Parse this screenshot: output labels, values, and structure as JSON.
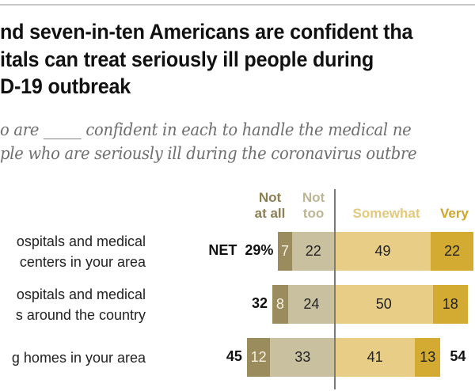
{
  "title_lines": [
    "nd seven-in-ten Americans are confident tha",
    "itals can treat seriously ill people during",
    "D-19 outbreak"
  ],
  "subtitle_lines": [
    "o are _____ confident in each to handle the medical ne",
    "ple who are seriously ill during the coronavirus outbre"
  ],
  "colors": {
    "not_at_all": "#9a8c5c",
    "not_too": "#c9c0a0",
    "somewhat": "#e7cd85",
    "very": "#d3ab33",
    "not_at_all_header": "#8c7f55",
    "not_too_header": "#bdb596",
    "somewhat_header": "#e3c97c",
    "very_header": "#cfa42a"
  },
  "chart_data": {
    "type": "bar",
    "orientation": "horizontal-diverging",
    "title": "...nd seven-in-ten Americans are confident tha... ...itals can treat seriously ill people during ...D-19 outbreak",
    "subtitle": "...o are _____ confident in each to handle the medical ne... ...ple who are seriously ill during the coronavirus outbre...",
    "legend": [
      "Not at all",
      "Not too",
      "Somewhat",
      "Very"
    ],
    "legend_labels": {
      "not_at_all": [
        "Not",
        "at all"
      ],
      "not_too": [
        "Not",
        "too"
      ],
      "somewhat": "Somewhat",
      "very": "Very"
    },
    "categories": [
      [
        "ospitals and medical",
        " centers in your area"
      ],
      [
        "ospitals and medical",
        "s around the country"
      ],
      [
        "g homes in your area"
      ]
    ],
    "series": [
      {
        "name": "Not at all",
        "values": [
          7,
          8,
          12
        ]
      },
      {
        "name": "Not too",
        "values": [
          22,
          24,
          33
        ]
      },
      {
        "name": "Somewhat",
        "values": [
          49,
          50,
          41
        ]
      },
      {
        "name": "Very",
        "values": [
          22,
          18,
          13
        ]
      }
    ],
    "net_negative": [
      29,
      32,
      45
    ],
    "net_negative_labels": [
      "29%",
      "32",
      "45"
    ],
    "net_prefix": "NET",
    "net_positive_labels": [
      "",
      "",
      "54"
    ],
    "grid": false
  }
}
